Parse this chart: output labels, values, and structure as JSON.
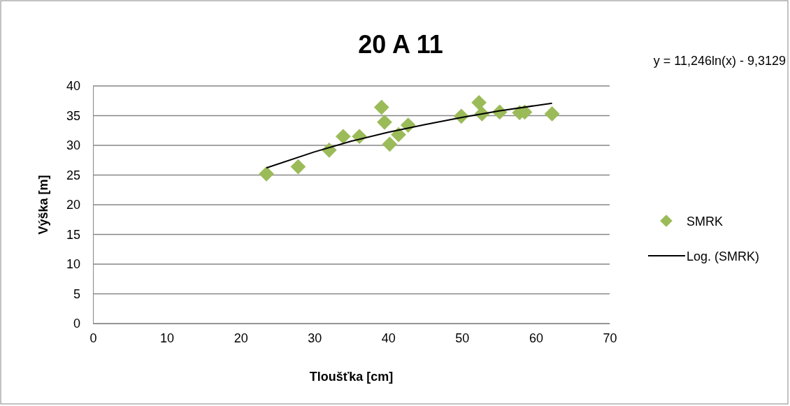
{
  "chart_data": {
    "type": "scatter",
    "title": "20 A 11",
    "xlabel": "Tloušťka [cm]",
    "ylabel": "Výška [m]",
    "xlim": [
      0,
      70
    ],
    "xticks": [
      0,
      10,
      20,
      30,
      40,
      50,
      60,
      70
    ],
    "ylim": [
      0,
      40
    ],
    "yticks": [
      0,
      5,
      10,
      15,
      20,
      25,
      30,
      35,
      40
    ],
    "grid": "y",
    "legend": "right",
    "annotations": [
      "y = 11,246ln(x) - 9,3129"
    ],
    "series": [
      {
        "name": "SMRK",
        "marker": "diamond",
        "color": "#9bbb59",
        "x": [
          23.5,
          27.8,
          32.0,
          33.9,
          36.1,
          39.1,
          39.5,
          40.2,
          41.4,
          42.7,
          49.9,
          52.3,
          52.7,
          55.1,
          57.8,
          58.5,
          62.2
        ],
        "values": [
          25.2,
          26.4,
          29.2,
          31.5,
          31.5,
          36.4,
          33.9,
          30.2,
          31.8,
          33.4,
          34.9,
          37.2,
          35.3,
          35.6,
          35.5,
          35.6,
          35.3
        ]
      },
      {
        "name": "Log. (SMRK)",
        "type": "line",
        "color": "#000000",
        "line_style": "solid",
        "x": [
          23.5,
          30,
          35,
          40,
          45,
          50,
          55,
          62.2
        ],
        "values": [
          26.2,
          28.9,
          30.7,
          32.2,
          33.5,
          34.7,
          35.8,
          37.1
        ]
      }
    ]
  }
}
